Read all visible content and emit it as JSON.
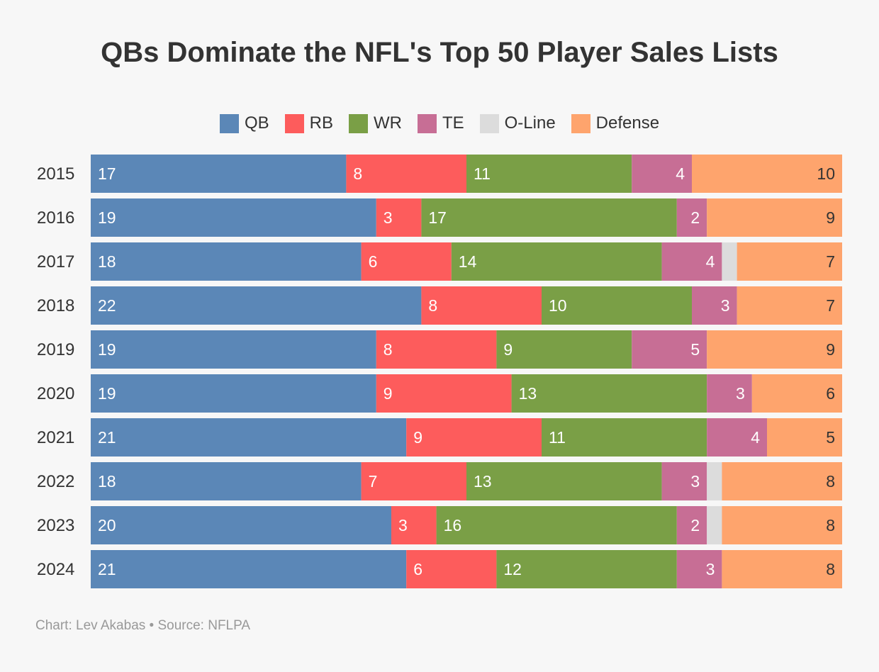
{
  "chart_data": {
    "type": "bar",
    "orientation": "horizontal",
    "stacked": true,
    "title": "QBs Dominate the NFL's Top 50 Player Sales Lists",
    "categories": [
      "2015",
      "2016",
      "2017",
      "2018",
      "2019",
      "2020",
      "2021",
      "2022",
      "2023",
      "2024"
    ],
    "series": [
      {
        "name": "QB",
        "color": "#5b87b7",
        "values": [
          17,
          19,
          18,
          22,
          19,
          19,
          21,
          18,
          20,
          21
        ]
      },
      {
        "name": "RB",
        "color": "#fd5c5c",
        "values": [
          8,
          3,
          6,
          8,
          8,
          9,
          9,
          7,
          3,
          6
        ]
      },
      {
        "name": "WR",
        "color": "#7a9f46",
        "values": [
          11,
          17,
          14,
          10,
          9,
          13,
          11,
          13,
          16,
          12
        ]
      },
      {
        "name": "TE",
        "color": "#c76e95",
        "values": [
          4,
          2,
          4,
          3,
          5,
          3,
          4,
          3,
          2,
          3
        ]
      },
      {
        "name": "O-Line",
        "color": "#dcdcdc",
        "values": [
          0,
          0,
          1,
          0,
          0,
          0,
          0,
          1,
          1,
          0
        ]
      },
      {
        "name": "Defense",
        "color": "#fea46d",
        "values": [
          10,
          9,
          7,
          7,
          9,
          6,
          5,
          8,
          8,
          8
        ]
      }
    ],
    "xlim": [
      0,
      50
    ],
    "data_labels": true,
    "grid": false,
    "legend_position": "top"
  },
  "footer": "Chart: Lev Akabas • Source: NFLPA"
}
